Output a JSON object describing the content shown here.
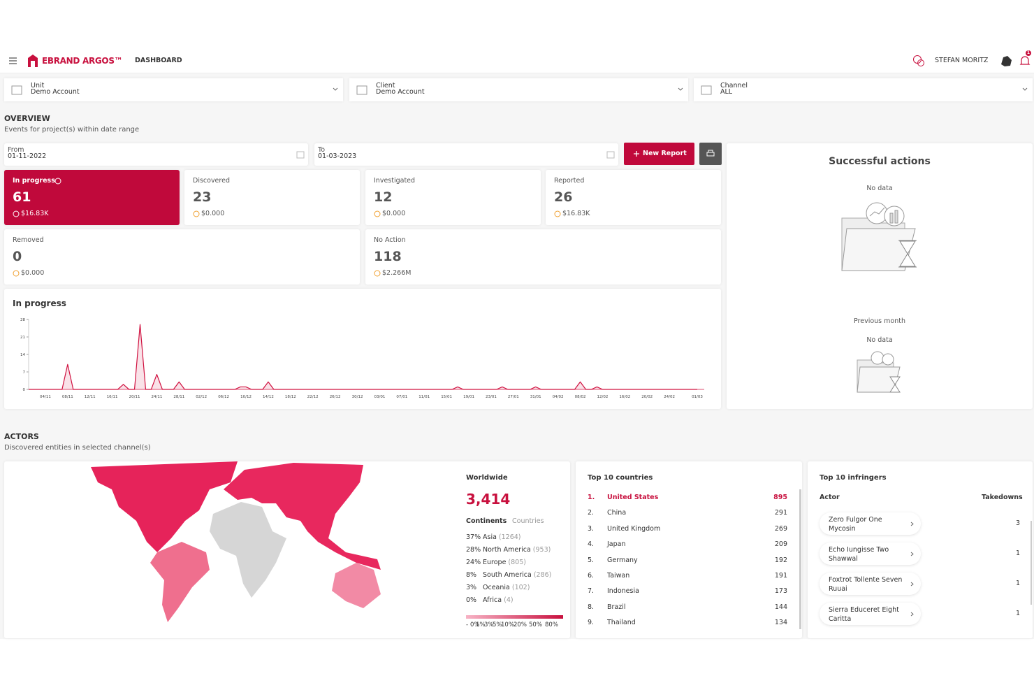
{
  "header": {
    "brand": "EBRAND ARGOS™",
    "nav": "DASHBOARD",
    "user": "STEFAN MORITZ",
    "notifications": "1"
  },
  "filters": [
    {
      "label": "Unit",
      "value": "Demo Account"
    },
    {
      "label": "Client",
      "value": "Demo Account"
    },
    {
      "label": "Channel",
      "value": "ALL"
    }
  ],
  "overview": {
    "title": "OVERVIEW",
    "subtitle": "Events for project(s) within date range",
    "from_label": "From",
    "from": "01-11-2022",
    "to_label": "To",
    "to": "01-03-2023",
    "new_report": "New Report"
  },
  "status_cards": [
    {
      "label": "In progress",
      "value": 61,
      "amount": "$16.83K"
    },
    {
      "label": "Discovered",
      "value": 23,
      "amount": "$0.000"
    },
    {
      "label": "Investigated",
      "value": 12,
      "amount": "$0.000"
    },
    {
      "label": "Reported",
      "value": 26,
      "amount": "$16.83K"
    },
    {
      "label": "Removed",
      "value": 0,
      "amount": "$0.000"
    },
    {
      "label": "No Action",
      "value": 118,
      "amount": "$2.266M"
    }
  ],
  "chart_data": {
    "type": "line",
    "title": "In progress",
    "color": "#d0103f",
    "categories": [
      null,
      null,
      null,
      "04/11",
      null,
      null,
      null,
      "08/11",
      null,
      null,
      null,
      "12/11",
      null,
      null,
      null,
      "16/11",
      null,
      null,
      null,
      "20/11",
      null,
      null,
      null,
      "24/11",
      null,
      null,
      null,
      "28/11",
      null,
      null,
      null,
      "02/12",
      null,
      null,
      null,
      "06/12",
      null,
      null,
      null,
      "10/12",
      null,
      null,
      null,
      "14/12",
      null,
      null,
      null,
      "18/12",
      null,
      null,
      null,
      "22/12",
      null,
      null,
      null,
      "26/12",
      null,
      null,
      null,
      "30/12",
      null,
      null,
      null,
      "03/01",
      null,
      null,
      null,
      "07/01",
      null,
      null,
      null,
      "11/01",
      null,
      null,
      null,
      "15/01",
      null,
      null,
      null,
      "19/01",
      null,
      null,
      null,
      "23/01",
      null,
      null,
      null,
      "27/01",
      null,
      null,
      null,
      "31/01",
      null,
      null,
      null,
      "04/02",
      null,
      null,
      null,
      "08/02",
      null,
      null,
      null,
      "12/02",
      null,
      null,
      null,
      "16/02",
      null,
      null,
      null,
      "20/02",
      null,
      null,
      null,
      "24/02",
      null,
      null,
      null,
      null,
      "01/03"
    ],
    "values": [
      0,
      0,
      0,
      0,
      0,
      0,
      0,
      10,
      0,
      0,
      0,
      0,
      0,
      0,
      0,
      0,
      0,
      2,
      0,
      0,
      26,
      0,
      0,
      6,
      0,
      0,
      0,
      3,
      0,
      0,
      0,
      0,
      0,
      0,
      0,
      0,
      0,
      0,
      1,
      1,
      0,
      0,
      0,
      3,
      0,
      0,
      0,
      0,
      0,
      0,
      0,
      0,
      0,
      0,
      0,
      0,
      0,
      0,
      0,
      0,
      0,
      0,
      0,
      0,
      0,
      0,
      0,
      0,
      0,
      0,
      0,
      0,
      0,
      0,
      0,
      0,
      0,
      1,
      0,
      0,
      0,
      0,
      0,
      0,
      0,
      1,
      0,
      0,
      0,
      0,
      0,
      1,
      0,
      0,
      0,
      0,
      0,
      0,
      0,
      3,
      0,
      0,
      1,
      0,
      0,
      0,
      0,
      0,
      0,
      0,
      0,
      0,
      0,
      0,
      0,
      0,
      0,
      0,
      0,
      0,
      0
    ],
    "ylim": [
      0,
      28
    ],
    "yticks": [
      0,
      7,
      14,
      21,
      28
    ]
  },
  "successful_actions": {
    "title": "Successful actions",
    "no_data": "No data",
    "previous_month": "Previous month",
    "previous_no_data": "No data"
  },
  "actors": {
    "title": "ACTORS",
    "subtitle": "Discovered entities in selected channel(s)"
  },
  "worldwide": {
    "title": "Worldwide",
    "total": "3,414",
    "tabs": [
      "Continents",
      "Countries"
    ],
    "continents": [
      {
        "pct": "37%",
        "name": "Asia",
        "count": "(1264)"
      },
      {
        "pct": "28%",
        "name": "North America",
        "count": "(953)"
      },
      {
        "pct": "24%",
        "name": "Europe",
        "count": "(805)"
      },
      {
        "pct": "8%",
        "name": "South America",
        "count": "(286)"
      },
      {
        "pct": "3%",
        "name": "Oceania",
        "count": "(102)"
      },
      {
        "pct": "0%",
        "name": "Africa",
        "count": "(4)"
      }
    ],
    "scale": [
      "-",
      "0%",
      "1%",
      "3%",
      "5%",
      "10%",
      "20%",
      "50%",
      "80%"
    ]
  },
  "top_countries": {
    "title": "Top 10 countries",
    "rows": [
      {
        "rank": "1.",
        "name": "United States",
        "count": 895
      },
      {
        "rank": "2.",
        "name": "China",
        "count": 291
      },
      {
        "rank": "3.",
        "name": "United Kingdom",
        "count": 269
      },
      {
        "rank": "4.",
        "name": "Japan",
        "count": 209
      },
      {
        "rank": "5.",
        "name": "Germany",
        "count": 192
      },
      {
        "rank": "6.",
        "name": "Taiwan",
        "count": 191
      },
      {
        "rank": "7.",
        "name": "Indonesia",
        "count": 173
      },
      {
        "rank": "8.",
        "name": "Brazil",
        "count": 144
      },
      {
        "rank": "9.",
        "name": "Thailand",
        "count": 134
      }
    ]
  },
  "top_infringers": {
    "title": "Top 10 infringers",
    "col_actor": "Actor",
    "col_takedowns": "Takedowns",
    "rows": [
      {
        "actor": "Zero Fulgor One Mycosin",
        "takedowns": 3
      },
      {
        "actor": "Echo Iungisse Two Shawwal",
        "takedowns": 1
      },
      {
        "actor": "Foxtrot Tollente Seven Ruuai",
        "takedowns": 1
      },
      {
        "actor": "Sierra Educeret Eight Caritta",
        "takedowns": 1
      }
    ]
  }
}
